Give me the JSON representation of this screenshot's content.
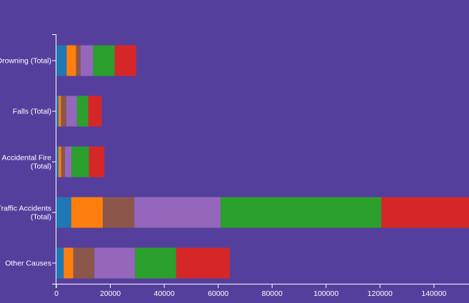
{
  "chart_data": {
    "type": "bar",
    "orientation": "horizontal",
    "stacked": true,
    "title": "",
    "xlabel": "",
    "ylabel": "",
    "xlim": [
      0,
      153000
    ],
    "x_ticks": [
      0,
      20000,
      40000,
      60000,
      80000,
      100000,
      120000,
      140000
    ],
    "grid": false,
    "legend": "none",
    "background": "#553f9c",
    "categories": [
      [
        "Drowning (Total)"
      ],
      [
        "Falls (Total)"
      ],
      [
        "Accidental Fire",
        "(Total)"
      ],
      [
        "Traffic Accidents",
        "(Total)"
      ],
      [
        "Other Causes"
      ]
    ],
    "series": [
      {
        "color": "#1f77b4",
        "values": [
          3800,
          800,
          800,
          5500,
          2700
        ]
      },
      {
        "color": "#ff7f0e",
        "values": [
          3500,
          900,
          1000,
          11700,
          3600
        ]
      },
      {
        "color": "#8c564b",
        "values": [
          1700,
          2000,
          1400,
          11700,
          7800
        ]
      },
      {
        "color": "#9467bd",
        "values": [
          4600,
          3900,
          2400,
          32000,
          15100
        ]
      },
      {
        "color": "#2ca02c",
        "values": [
          8000,
          4200,
          6500,
          59600,
          15200
        ]
      },
      {
        "color": "#d62728",
        "values": [
          8000,
          5000,
          5700,
          32500,
          19900
        ]
      }
    ]
  }
}
